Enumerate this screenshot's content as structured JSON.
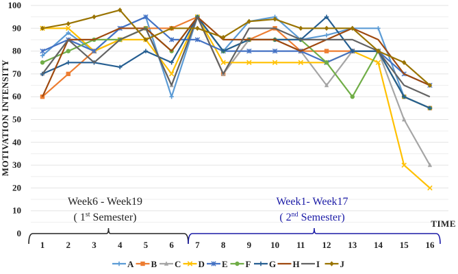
{
  "chart_data": {
    "type": "line",
    "title": "",
    "xlabel": "TIME",
    "ylabel": "MOTIVATION INTENSITY",
    "ylim": [
      0,
      100
    ],
    "yticks": [
      0,
      10,
      20,
      30,
      40,
      50,
      60,
      70,
      80,
      90,
      100
    ],
    "grid": true,
    "legend_position": "bottom",
    "x": [
      1,
      2,
      3,
      4,
      5,
      6,
      7,
      8,
      9,
      10,
      11,
      12,
      13,
      14,
      15,
      16
    ],
    "x_tick_labels": [
      "1",
      "2",
      "3",
      "4",
      "5",
      "6",
      "7",
      "8",
      "9",
      "10",
      "11",
      "12",
      "13",
      "14",
      "15",
      "16"
    ],
    "series": [
      {
        "name": "A",
        "color": "#5b9bd5",
        "marker": "plus",
        "values": [
          78,
          88,
          80,
          90,
          95,
          60,
          95,
          80,
          93,
          95,
          85,
          87,
          90,
          90,
          60,
          55
        ]
      },
      {
        "name": "B",
        "color": "#ed7d31",
        "marker": "square",
        "values": [
          60,
          70,
          80,
          85,
          90,
          90,
          95,
          70,
          85,
          90,
          80,
          80,
          80,
          80,
          60,
          55
        ]
      },
      {
        "name": "C",
        "color": "#a5a5a5",
        "marker": "triangle",
        "values": [
          70,
          85,
          80,
          85,
          90,
          65,
          95,
          70,
          85,
          85,
          80,
          65,
          80,
          80,
          50,
          30
        ]
      },
      {
        "name": "D",
        "color": "#ffc000",
        "marker": "x",
        "values": [
          90,
          90,
          80,
          85,
          85,
          70,
          95,
          75,
          75,
          75,
          75,
          75,
          80,
          75,
          30,
          20
        ]
      },
      {
        "name": "E",
        "color": "#4472c4",
        "marker": "asterisk",
        "values": [
          80,
          85,
          80,
          90,
          95,
          85,
          85,
          80,
          80,
          80,
          80,
          75,
          80,
          80,
          70,
          65
        ]
      },
      {
        "name": "F",
        "color": "#70ad47",
        "marker": "circle",
        "values": [
          75,
          80,
          85,
          85,
          90,
          80,
          95,
          80,
          85,
          85,
          85,
          75,
          60,
          80,
          60,
          55
        ]
      },
      {
        "name": "G",
        "color": "#255e91",
        "marker": "plus",
        "values": [
          70,
          75,
          75,
          73,
          80,
          75,
          95,
          80,
          85,
          85,
          85,
          95,
          80,
          80,
          60,
          55
        ]
      },
      {
        "name": "H",
        "color": "#9e480e",
        "marker": "none",
        "values": [
          60,
          85,
          85,
          90,
          90,
          80,
          95,
          85,
          85,
          85,
          80,
          85,
          90,
          85,
          70,
          65
        ]
      },
      {
        "name": "I",
        "color": "#636363",
        "marker": "none",
        "values": [
          70,
          85,
          75,
          85,
          90,
          65,
          95,
          70,
          90,
          90,
          85,
          85,
          85,
          80,
          65,
          60
        ]
      },
      {
        "name": "J",
        "color": "#997300",
        "marker": "diamond",
        "values": [
          90,
          92,
          95,
          98,
          85,
          90,
          90,
          86,
          93,
          94,
          90,
          90,
          90,
          80,
          75,
          65
        ]
      }
    ],
    "annotations": [
      {
        "id": "sem1",
        "line1": "Week6 - Week19",
        "line2_pre": "( 1",
        "line2_sup": "st",
        "line2_post": " Semester)",
        "color": "#222222",
        "span": [
          1,
          6
        ]
      },
      {
        "id": "sem2",
        "line1": "Week1- Week17",
        "line2_pre": "( 2",
        "line2_sup": "nd",
        "line2_post": " Semester)",
        "color": "#1a1aa6",
        "span": [
          7,
          16
        ]
      }
    ]
  }
}
